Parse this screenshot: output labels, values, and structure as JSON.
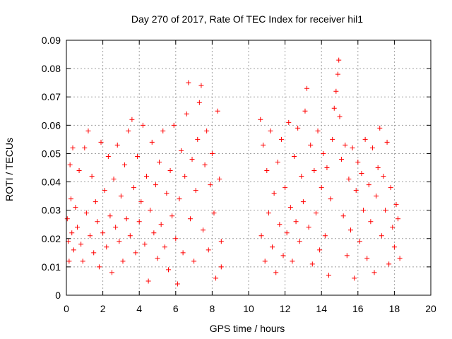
{
  "chart_data": {
    "type": "scatter",
    "title": "Day 270 of 2017, Rate Of TEC Index for receiver hil1",
    "xlabel": "GPS time / hours",
    "ylabel": "ROTI / TECUs",
    "xlim": [
      0,
      20
    ],
    "ylim": [
      0,
      0.09
    ],
    "x_ticks": [
      "0",
      "2",
      "4",
      "6",
      "8",
      "10",
      "12",
      "14",
      "16",
      "18",
      "20"
    ],
    "y_ticks": [
      "0",
      "0.01",
      "0.02",
      "0.03",
      "0.04",
      "0.05",
      "0.06",
      "0.07",
      "0.08",
      "0.09"
    ],
    "grid": true,
    "marker": "+",
    "color": "#ff0000",
    "series": [
      {
        "name": "ROTI",
        "points": [
          [
            0.05,
            0.027
          ],
          [
            0.1,
            0.019
          ],
          [
            0.15,
            0.012
          ],
          [
            0.2,
            0.046
          ],
          [
            0.25,
            0.034
          ],
          [
            0.3,
            0.022
          ],
          [
            0.35,
            0.052
          ],
          [
            0.4,
            0.016
          ],
          [
            0.5,
            0.031
          ],
          [
            0.6,
            0.024
          ],
          [
            0.7,
            0.044
          ],
          [
            0.8,
            0.018
          ],
          [
            0.9,
            0.012
          ],
          [
            1.0,
            0.052
          ],
          [
            1.1,
            0.029
          ],
          [
            1.2,
            0.058
          ],
          [
            1.3,
            0.021
          ],
          [
            1.4,
            0.042
          ],
          [
            1.5,
            0.015
          ],
          [
            1.6,
            0.033
          ],
          [
            1.7,
            0.026
          ],
          [
            1.8,
            0.01
          ],
          [
            1.9,
            0.054
          ],
          [
            2.0,
            0.022
          ],
          [
            2.1,
            0.037
          ],
          [
            2.2,
            0.017
          ],
          [
            2.3,
            0.049
          ],
          [
            2.4,
            0.028
          ],
          [
            2.5,
            0.008
          ],
          [
            2.6,
            0.041
          ],
          [
            2.7,
            0.024
          ],
          [
            2.8,
            0.053
          ],
          [
            2.9,
            0.019
          ],
          [
            3.0,
            0.035
          ],
          [
            3.1,
            0.012
          ],
          [
            3.2,
            0.046
          ],
          [
            3.3,
            0.027
          ],
          [
            3.4,
            0.058
          ],
          [
            3.5,
            0.021
          ],
          [
            3.6,
            0.062
          ],
          [
            3.7,
            0.038
          ],
          [
            3.8,
            0.015
          ],
          [
            3.9,
            0.049
          ],
          [
            4.0,
            0.026
          ],
          [
            4.1,
            0.033
          ],
          [
            4.2,
            0.06
          ],
          [
            4.3,
            0.018
          ],
          [
            4.4,
            0.042
          ],
          [
            4.5,
            0.005
          ],
          [
            4.6,
            0.03
          ],
          [
            4.7,
            0.054
          ],
          [
            4.8,
            0.022
          ],
          [
            4.9,
            0.039
          ],
          [
            5.0,
            0.013
          ],
          [
            5.1,
            0.047
          ],
          [
            5.2,
            0.025
          ],
          [
            5.3,
            0.058
          ],
          [
            5.4,
            0.017
          ],
          [
            5.5,
            0.036
          ],
          [
            5.6,
            0.009
          ],
          [
            5.7,
            0.044
          ],
          [
            5.8,
            0.028
          ],
          [
            5.9,
            0.06
          ],
          [
            6.0,
            0.02
          ],
          [
            6.1,
            0.004
          ],
          [
            6.2,
            0.034
          ],
          [
            6.3,
            0.051
          ],
          [
            6.4,
            0.015
          ],
          [
            6.5,
            0.042
          ],
          [
            6.6,
            0.064
          ],
          [
            6.7,
            0.075
          ],
          [
            6.8,
            0.027
          ],
          [
            6.9,
            0.048
          ],
          [
            7.0,
            0.012
          ],
          [
            7.1,
            0.037
          ],
          [
            7.2,
            0.055
          ],
          [
            7.3,
            0.068
          ],
          [
            7.4,
            0.074
          ],
          [
            7.5,
            0.023
          ],
          [
            7.6,
            0.046
          ],
          [
            7.7,
            0.058
          ],
          [
            7.8,
            0.016
          ],
          [
            7.9,
            0.039
          ],
          [
            8.0,
            0.05
          ],
          [
            8.1,
            0.029
          ],
          [
            8.2,
            0.006
          ],
          [
            8.3,
            0.065
          ],
          [
            8.4,
            0.041
          ],
          [
            8.5,
            0.019
          ],
          [
            8.5,
            0.01
          ],
          [
            10.65,
            0.062
          ],
          [
            10.7,
            0.021
          ],
          [
            10.8,
            0.053
          ],
          [
            10.9,
            0.012
          ],
          [
            11.0,
            0.044
          ],
          [
            11.1,
            0.029
          ],
          [
            11.2,
            0.058
          ],
          [
            11.3,
            0.017
          ],
          [
            11.4,
            0.036
          ],
          [
            11.5,
            0.008
          ],
          [
            11.6,
            0.047
          ],
          [
            11.7,
            0.025
          ],
          [
            11.8,
            0.055
          ],
          [
            11.9,
            0.014
          ],
          [
            12.0,
            0.038
          ],
          [
            12.1,
            0.022
          ],
          [
            12.2,
            0.061
          ],
          [
            12.3,
            0.031
          ],
          [
            12.4,
            0.012
          ],
          [
            12.5,
            0.049
          ],
          [
            12.6,
            0.026
          ],
          [
            12.7,
            0.059
          ],
          [
            12.8,
            0.019
          ],
          [
            12.9,
            0.042
          ],
          [
            13.0,
            0.033
          ],
          [
            13.1,
            0.065
          ],
          [
            13.2,
            0.073
          ],
          [
            13.3,
            0.024
          ],
          [
            13.4,
            0.053
          ],
          [
            13.5,
            0.011
          ],
          [
            13.6,
            0.044
          ],
          [
            13.7,
            0.029
          ],
          [
            13.8,
            0.058
          ],
          [
            13.9,
            0.016
          ],
          [
            14.0,
            0.038
          ],
          [
            14.1,
            0.05
          ],
          [
            14.2,
            0.021
          ],
          [
            14.3,
            0.045
          ],
          [
            14.4,
            0.007
          ],
          [
            14.5,
            0.034
          ],
          [
            14.6,
            0.055
          ],
          [
            14.7,
            0.066
          ],
          [
            14.8,
            0.072
          ],
          [
            14.9,
            0.078
          ],
          [
            14.95,
            0.083
          ],
          [
            15.0,
            0.063
          ],
          [
            15.1,
            0.048
          ],
          [
            15.2,
            0.028
          ],
          [
            15.3,
            0.053
          ],
          [
            15.4,
            0.014
          ],
          [
            15.5,
            0.041
          ],
          [
            15.6,
            0.023
          ],
          [
            15.7,
            0.052
          ],
          [
            15.8,
            0.006
          ],
          [
            15.9,
            0.037
          ],
          [
            16.0,
            0.047
          ],
          [
            16.1,
            0.019
          ],
          [
            16.2,
            0.043
          ],
          [
            16.3,
            0.03
          ],
          [
            16.4,
            0.055
          ],
          [
            16.5,
            0.013
          ],
          [
            16.6,
            0.039
          ],
          [
            16.7,
            0.026
          ],
          [
            16.8,
            0.052
          ],
          [
            16.9,
            0.008
          ],
          [
            17.0,
            0.035
          ],
          [
            17.1,
            0.045
          ],
          [
            17.2,
            0.059
          ],
          [
            17.3,
            0.021
          ],
          [
            17.4,
            0.042
          ],
          [
            17.5,
            0.03
          ],
          [
            17.6,
            0.054
          ],
          [
            17.7,
            0.011
          ],
          [
            17.8,
            0.038
          ],
          [
            17.9,
            0.024
          ],
          [
            18.0,
            0.017
          ],
          [
            18.1,
            0.032
          ],
          [
            18.2,
            0.027
          ],
          [
            18.3,
            0.013
          ]
        ]
      }
    ]
  }
}
